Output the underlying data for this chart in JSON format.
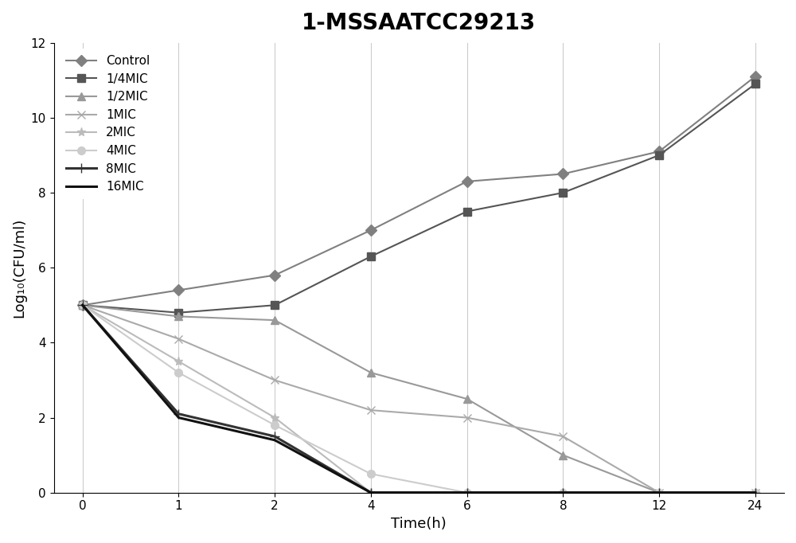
{
  "title": "1-MSSAATCC29213",
  "xlabel": "Time(h)",
  "ylabel": "Log₁₀(CFU/ml)",
  "time_labels": [
    "0",
    "1",
    "2",
    "4",
    "6",
    "8",
    "12",
    "24"
  ],
  "series": [
    {
      "label": "Control",
      "color": "#808080",
      "marker": "D",
      "markersize": 7,
      "linewidth": 1.5,
      "linestyle": "-",
      "values": [
        5.0,
        5.4,
        5.8,
        7.0,
        8.3,
        8.5,
        9.1,
        11.1
      ]
    },
    {
      "label": "1/4MIC",
      "color": "#555555",
      "marker": "s",
      "markersize": 7,
      "linewidth": 1.5,
      "linestyle": "-",
      "values": [
        5.0,
        4.8,
        5.0,
        6.3,
        7.5,
        8.0,
        9.0,
        10.9
      ]
    },
    {
      "label": "1/2MIC",
      "color": "#999999",
      "marker": "^",
      "markersize": 7,
      "linewidth": 1.5,
      "linestyle": "-",
      "values": [
        5.0,
        4.7,
        4.6,
        3.2,
        2.5,
        1.0,
        0.0,
        0.0
      ]
    },
    {
      "label": "1MIC",
      "color": "#aaaaaa",
      "marker": "x",
      "markersize": 7,
      "linewidth": 1.5,
      "linestyle": "-",
      "values": [
        5.0,
        4.1,
        3.0,
        2.2,
        2.0,
        1.5,
        0.0,
        0.0
      ]
    },
    {
      "label": "2MIC",
      "color": "#bbbbbb",
      "marker": "*",
      "markersize": 8,
      "linewidth": 1.5,
      "linestyle": "-",
      "values": [
        5.0,
        3.5,
        2.0,
        0.0,
        0.0,
        0.0,
        0.0,
        0.0
      ]
    },
    {
      "label": "4MIC",
      "color": "#cccccc",
      "marker": "o",
      "markersize": 7,
      "linewidth": 1.5,
      "linestyle": "-",
      "values": [
        5.0,
        3.2,
        1.8,
        0.5,
        0.0,
        0.0,
        0.0,
        0.0
      ]
    },
    {
      "label": "8MIC",
      "color": "#333333",
      "marker": "+",
      "markersize": 9,
      "linewidth": 2.2,
      "linestyle": "-",
      "values": [
        5.0,
        2.1,
        1.5,
        0.0,
        0.0,
        0.0,
        0.0,
        0.0
      ]
    },
    {
      "label": "16MIC",
      "color": "#111111",
      "marker": "None",
      "markersize": 0,
      "linewidth": 2.2,
      "linestyle": "-",
      "values": [
        5.0,
        2.0,
        1.4,
        0.0,
        0.0,
        0.0,
        0.0,
        0.0
      ]
    }
  ],
  "ylim": [
    0,
    12
  ],
  "yticks": [
    0,
    2,
    4,
    6,
    8,
    10,
    12
  ],
  "grid_color": "#cccccc",
  "bg_color": "#ffffff",
  "title_fontsize": 20,
  "label_fontsize": 13,
  "tick_fontsize": 11,
  "legend_fontsize": 11
}
